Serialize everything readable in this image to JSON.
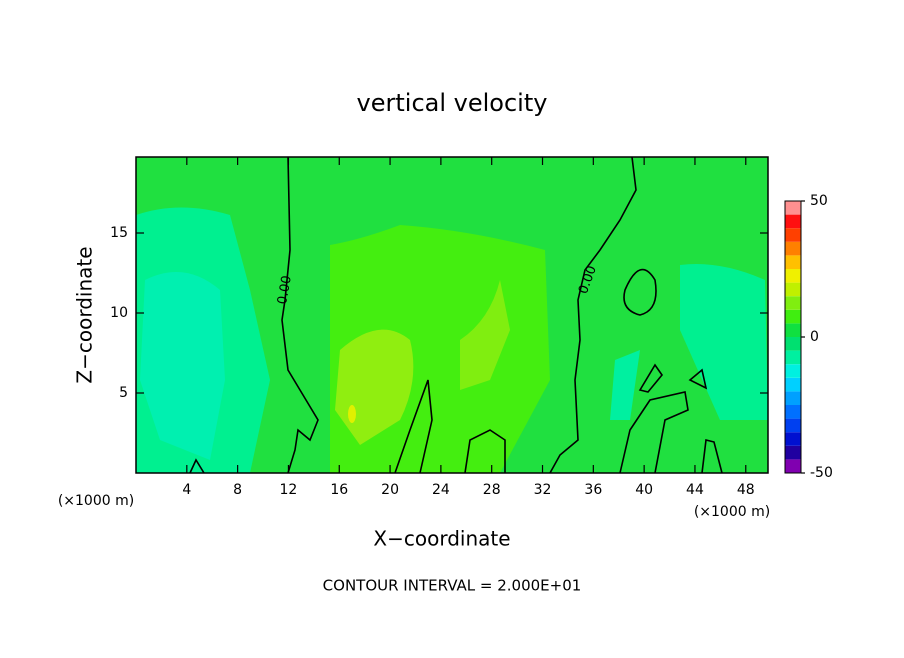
{
  "chart_data": {
    "type": "contour",
    "title": "vertical velocity",
    "xlabel": "X−coordinate",
    "ylabel": "Z−coordinate",
    "x_unit": "(×1000 m)",
    "footer": "CONTOUR INTERVAL = 2.000E+01",
    "contour_labels": [
      "0.00",
      "0.00"
    ],
    "xlim": [
      0,
      49.75
    ],
    "xticks": [
      4,
      8,
      12,
      16,
      20,
      24,
      28,
      32,
      36,
      40,
      44,
      48
    ],
    "ylim": [
      0,
      19.75
    ],
    "yticks": [
      5,
      10,
      15
    ],
    "colorbar": {
      "lim": [
        -50,
        50
      ],
      "ticks": [
        -50,
        0,
        50
      ],
      "colors": [
        "#8000b0",
        "#2000a0",
        "#0010d0",
        "#0040f0",
        "#0070ff",
        "#00a0ff",
        "#00d0ff",
        "#00f0e0",
        "#00f0a0",
        "#00e070",
        "#10e040",
        "#40ee10",
        "#80ee10",
        "#c0f000",
        "#f0f000",
        "#ffc000",
        "#ff8000",
        "#ff4000",
        "#ff1010",
        "#ff9090"
      ]
    }
  }
}
